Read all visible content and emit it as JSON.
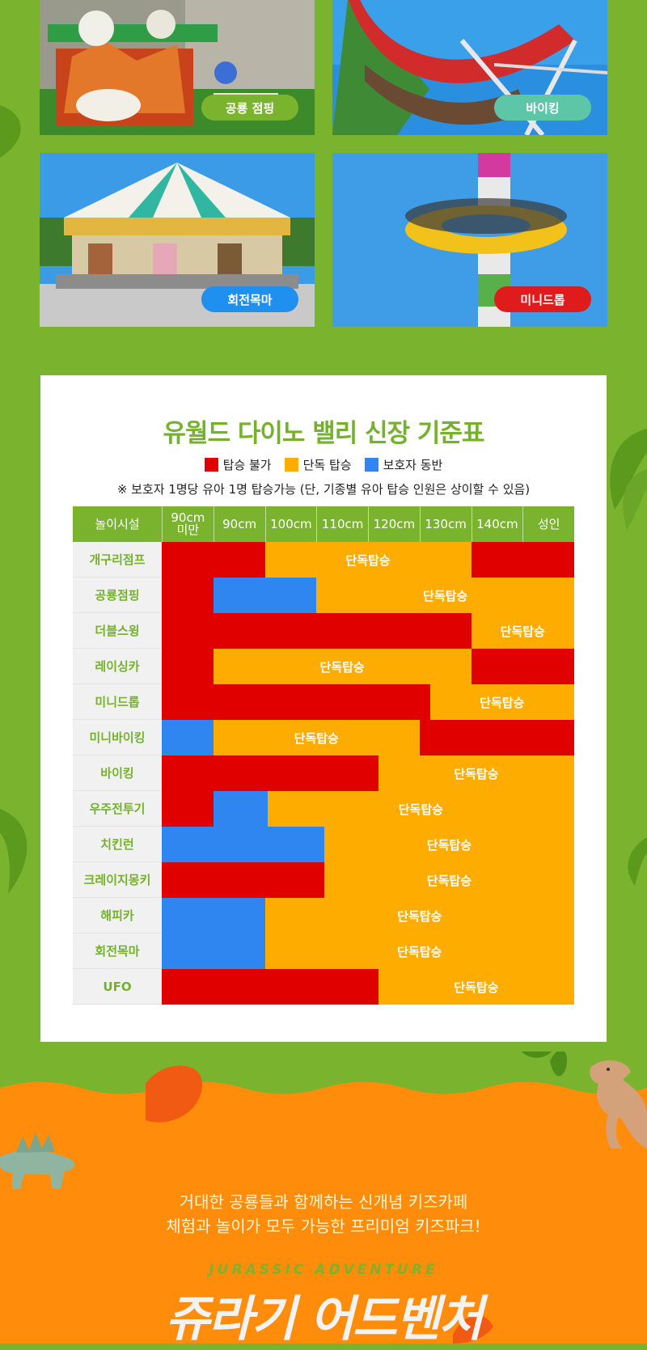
{
  "rides": [
    {
      "name": "공룡 점핑",
      "badge_color": "#7ab42e"
    },
    {
      "name": "바이킹",
      "badge_color": "#5cc6a6"
    },
    {
      "name": "회전목마",
      "badge_color": "#1f8ff0"
    },
    {
      "name": "미니드롭",
      "badge_color": "#e01b1b"
    }
  ],
  "height_chart": {
    "title": "유월드 다이노 밸리 신장 기준표",
    "legend": [
      {
        "label": "탑승 불가",
        "color": "#e00000"
      },
      {
        "label": "단독 탑승",
        "color": "#ffac00"
      },
      {
        "label": "보호자 동반",
        "color": "#2f86f0"
      }
    ],
    "note": "※ 보호자 1명당 유아 1명 탑승가능 (단, 기종별 유아 탑승 인원은 상이할 수 있음)",
    "header": {
      "ride_column": "놀이시설",
      "columns": [
        "90cm\n미만",
        "90cm",
        "100cm",
        "110cm",
        "120cm",
        "130cm",
        "140cm",
        "성인"
      ]
    },
    "solo_label": "단독탑승",
    "rows": [
      {
        "ride": "개구리점프",
        "segments": [
          {
            "status": "no",
            "from": 0,
            "to": 2
          },
          {
            "status": "solo",
            "from": 2,
            "to": 6,
            "label": "단독탑승"
          },
          {
            "status": "no",
            "from": 6,
            "to": 8
          }
        ]
      },
      {
        "ride": "공룡점핑",
        "segments": [
          {
            "status": "no",
            "from": 0,
            "to": 1
          },
          {
            "status": "guardian",
            "from": 1,
            "to": 3
          },
          {
            "status": "solo",
            "from": 3,
            "to": 8,
            "label": "단독탑승"
          }
        ]
      },
      {
        "ride": "더블스윙",
        "segments": [
          {
            "status": "no",
            "from": 0,
            "to": 6
          },
          {
            "status": "solo",
            "from": 6,
            "to": 8,
            "label": "단독탑승"
          }
        ]
      },
      {
        "ride": "레이싱카",
        "segments": [
          {
            "status": "no",
            "from": 0,
            "to": 1
          },
          {
            "status": "solo",
            "from": 1,
            "to": 6,
            "label": "단독탑승"
          },
          {
            "status": "no",
            "from": 6,
            "to": 8
          }
        ]
      },
      {
        "ride": "미니드롭",
        "segments": [
          {
            "status": "no",
            "from": 0,
            "to": 5.2
          },
          {
            "status": "solo",
            "from": 5.2,
            "to": 8,
            "label": "단독탑승"
          }
        ]
      },
      {
        "ride": "미니바이킹",
        "segments": [
          {
            "status": "guardian",
            "from": 0,
            "to": 1
          },
          {
            "status": "solo",
            "from": 1,
            "to": 5,
            "label": "단독탑승"
          },
          {
            "status": "no",
            "from": 5,
            "to": 8
          }
        ]
      },
      {
        "ride": "바이킹",
        "segments": [
          {
            "status": "no",
            "from": 0,
            "to": 4.2
          },
          {
            "status": "solo",
            "from": 4.2,
            "to": 8,
            "label": "단독탑승"
          }
        ]
      },
      {
        "ride": "우주전투기",
        "segments": [
          {
            "status": "no",
            "from": 0,
            "to": 1
          },
          {
            "status": "guardian",
            "from": 1,
            "to": 2.05
          },
          {
            "status": "solo",
            "from": 2.05,
            "to": 8,
            "label": "단독탑승"
          }
        ]
      },
      {
        "ride": "치킨런",
        "segments": [
          {
            "status": "guardian",
            "from": 0,
            "to": 3.15
          },
          {
            "status": "solo",
            "from": 3.15,
            "to": 8,
            "label": "단독탑승"
          }
        ]
      },
      {
        "ride": "크레이지몽키",
        "segments": [
          {
            "status": "no",
            "from": 0,
            "to": 3.15
          },
          {
            "status": "solo",
            "from": 3.15,
            "to": 8,
            "label": "단독탑승"
          }
        ]
      },
      {
        "ride": "해피카",
        "segments": [
          {
            "status": "guardian",
            "from": 0,
            "to": 2
          },
          {
            "status": "solo",
            "from": 2,
            "to": 8,
            "label": "단독탑승"
          }
        ]
      },
      {
        "ride": "회전목마",
        "segments": [
          {
            "status": "guardian",
            "from": 0,
            "to": 2
          },
          {
            "status": "solo",
            "from": 2,
            "to": 8,
            "label": "단독탑승"
          }
        ]
      },
      {
        "ride": "UFO",
        "segments": [
          {
            "status": "no",
            "from": 0,
            "to": 4.2
          },
          {
            "status": "solo",
            "from": 4.2,
            "to": 8,
            "label": "단독탑승"
          }
        ]
      }
    ]
  },
  "footer": {
    "tagline_1": "거대한 공룡들과 함께하는 신개념 키즈카페",
    "tagline_2": "체험과 놀이가 모두 가능한 프리미엄 키즈파크!",
    "eyebrow": "JURASSIC ADVENTURE",
    "title": "쥬라기 어드벤처"
  }
}
